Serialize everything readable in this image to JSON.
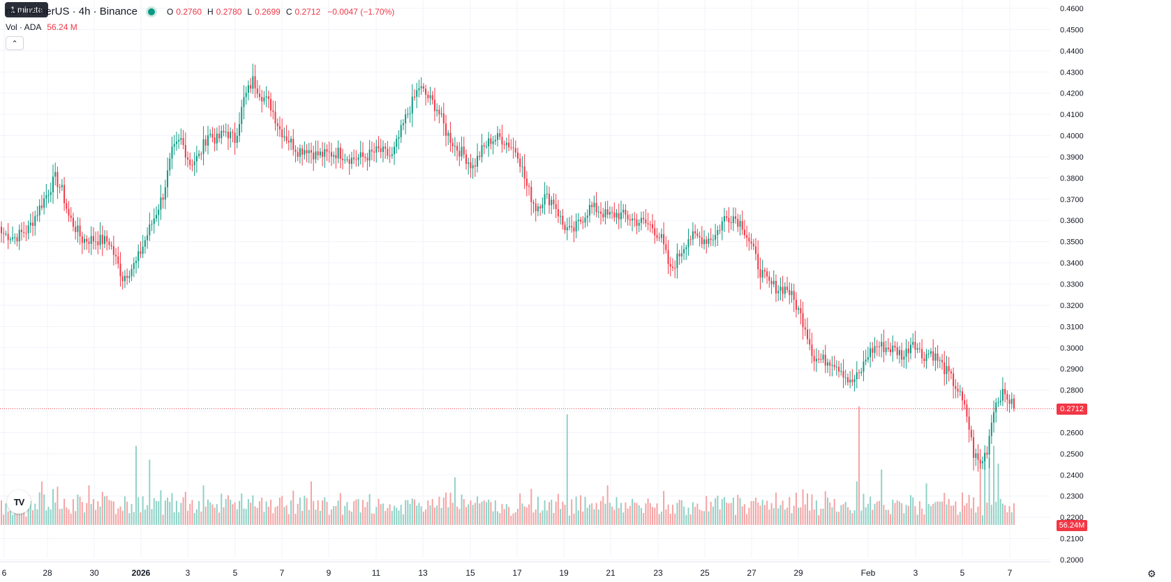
{
  "legend": {
    "symbol": "no / TetherUS · 4h · Binance",
    "o_label": "O",
    "o": "0.2760",
    "h_label": "H",
    "h": "0.2780",
    "l_label": "L",
    "l": "0.2699",
    "c_label": "C",
    "c": "0.2712",
    "change": "−0.0047 (−1.70%)"
  },
  "volume_legend": {
    "label": "Vol · ADA",
    "value": "56.24 M"
  },
  "tooltip": "1 minute",
  "logo": "TV",
  "settings_icon": "gear-icon",
  "colors": {
    "up": "#089981",
    "down": "#f23645",
    "up_vol": "#8fd1c6",
    "down_vol": "#f5a3a3"
  },
  "chart_data": {
    "type": "candlestick",
    "price_axis": {
      "ylim": [
        0.2,
        0.46
      ],
      "ticks": [
        "0.4600",
        "0.4500",
        "0.4400",
        "0.4300",
        "0.4200",
        "0.4100",
        "0.4000",
        "0.3900",
        "0.3800",
        "0.3700",
        "0.3600",
        "0.3500",
        "0.3400",
        "0.3300",
        "0.3200",
        "0.3100",
        "0.3000",
        "0.2900",
        "0.2800",
        "0.2700",
        "0.2600",
        "0.2500",
        "0.2400",
        "0.2300",
        "0.2200",
        "0.2100",
        "0.2000"
      ]
    },
    "time_axis": {
      "ticks": [
        "6",
        "28",
        "30",
        "2026",
        "3",
        "5",
        "7",
        "9",
        "11",
        "13",
        "15",
        "17",
        "19",
        "21",
        "23",
        "25",
        "27",
        "29",
        "Feb",
        "3",
        "5",
        "7"
      ]
    },
    "last_price": "0.2712",
    "last_volume": "56.24M",
    "close_path": [
      [
        0,
        0.354
      ],
      [
        6,
        0.352
      ],
      [
        12,
        0.356
      ],
      [
        18,
        0.368
      ],
      [
        24,
        0.38
      ],
      [
        27,
        0.374
      ],
      [
        30,
        0.362
      ],
      [
        36,
        0.351
      ],
      [
        42,
        0.351
      ],
      [
        48,
        0.35
      ],
      [
        54,
        0.333
      ],
      [
        60,
        0.34
      ],
      [
        66,
        0.356
      ],
      [
        72,
        0.372
      ],
      [
        76,
        0.392
      ],
      [
        80,
        0.398
      ],
      [
        84,
        0.387
      ],
      [
        88,
        0.39
      ],
      [
        92,
        0.401
      ],
      [
        96,
        0.398
      ],
      [
        100,
        0.402
      ],
      [
        104,
        0.398
      ],
      [
        108,
        0.417
      ],
      [
        112,
        0.426
      ],
      [
        116,
        0.419
      ],
      [
        120,
        0.414
      ],
      [
        124,
        0.403
      ],
      [
        128,
        0.398
      ],
      [
        132,
        0.393
      ],
      [
        136,
        0.394
      ],
      [
        140,
        0.391
      ],
      [
        144,
        0.391
      ],
      [
        150,
        0.392
      ],
      [
        156,
        0.389
      ],
      [
        162,
        0.39
      ],
      [
        168,
        0.393
      ],
      [
        174,
        0.39
      ],
      [
        180,
        0.408
      ],
      [
        186,
        0.423
      ],
      [
        190,
        0.418
      ],
      [
        194,
        0.413
      ],
      [
        198,
        0.402
      ],
      [
        202,
        0.395
      ],
      [
        206,
        0.391
      ],
      [
        210,
        0.385
      ],
      [
        214,
        0.393
      ],
      [
        218,
        0.398
      ],
      [
        222,
        0.399
      ],
      [
        226,
        0.396
      ],
      [
        230,
        0.392
      ],
      [
        234,
        0.376
      ],
      [
        238,
        0.366
      ],
      [
        242,
        0.371
      ],
      [
        246,
        0.369
      ],
      [
        250,
        0.358
      ],
      [
        254,
        0.354
      ],
      [
        258,
        0.36
      ],
      [
        262,
        0.366
      ],
      [
        266,
        0.365
      ],
      [
        270,
        0.362
      ],
      [
        274,
        0.363
      ],
      [
        278,
        0.362
      ],
      [
        282,
        0.36
      ],
      [
        286,
        0.359
      ],
      [
        290,
        0.357
      ],
      [
        294,
        0.351
      ],
      [
        298,
        0.336
      ],
      [
        302,
        0.344
      ],
      [
        306,
        0.352
      ],
      [
        310,
        0.352
      ],
      [
        314,
        0.351
      ],
      [
        318,
        0.353
      ],
      [
        322,
        0.361
      ],
      [
        326,
        0.362
      ],
      [
        330,
        0.358
      ],
      [
        334,
        0.348
      ],
      [
        338,
        0.336
      ],
      [
        342,
        0.33
      ],
      [
        346,
        0.328
      ],
      [
        350,
        0.328
      ],
      [
        354,
        0.32
      ],
      [
        358,
        0.31
      ],
      [
        362,
        0.295
      ],
      [
        366,
        0.294
      ],
      [
        370,
        0.294
      ],
      [
        374,
        0.29
      ],
      [
        378,
        0.283
      ],
      [
        382,
        0.287
      ],
      [
        386,
        0.297
      ],
      [
        390,
        0.301
      ],
      [
        394,
        0.3
      ],
      [
        398,
        0.299
      ],
      [
        402,
        0.296
      ],
      [
        406,
        0.304
      ],
      [
        410,
        0.296
      ],
      [
        414,
        0.298
      ],
      [
        418,
        0.293
      ],
      [
        422,
        0.287
      ],
      [
        426,
        0.28
      ],
      [
        430,
        0.268
      ],
      [
        433,
        0.25
      ],
      [
        436,
        0.245
      ],
      [
        439,
        0.252
      ],
      [
        442,
        0.272
      ],
      [
        445,
        0.278
      ],
      [
        448,
        0.277
      ],
      [
        451,
        0.2712
      ]
    ],
    "volume_scale_max": 60,
    "volume_spikes": {
      "18": 22,
      "39": 20,
      "60": 40,
      "66": 33,
      "90": 20,
      "138": 22,
      "202": 24,
      "252": 56,
      "258": 15,
      "270": 20,
      "381": 22,
      "382": 60,
      "392": 28,
      "412": 21,
      "436": 32,
      "438": 36,
      "440": 34,
      "442": 40,
      "444": 31
    }
  }
}
